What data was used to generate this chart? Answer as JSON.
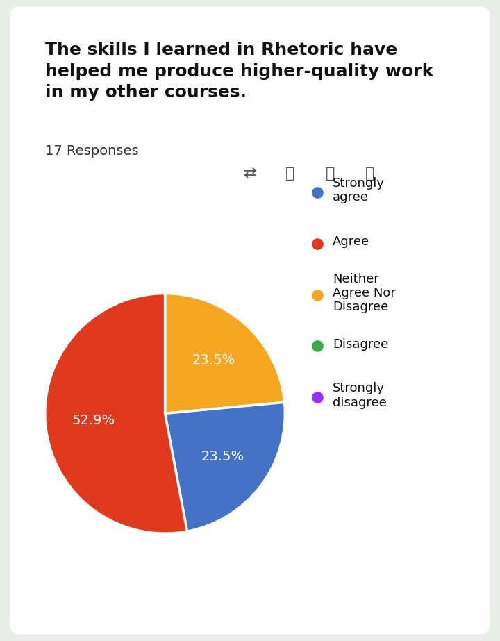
{
  "title": "The skills I learned in Rhetoric have\nhelped me produce higher-quality work\nin my other courses.",
  "responses_label": "17 Responses",
  "slices": [
    {
      "label": "Neither Agree Nor Disagree",
      "value": 23.5,
      "color": "#F5A623"
    },
    {
      "label": "Strongly agree",
      "value": 23.5,
      "color": "#4472C4"
    },
    {
      "label": "Agree",
      "value": 52.9,
      "color": "#E03A1E"
    }
  ],
  "legend_items": [
    {
      "label": "Strongly\nagree",
      "color": "#4472C4"
    },
    {
      "label": "Agree",
      "color": "#E03A1E"
    },
    {
      "label": "Neither\nAgree Nor\nDisagree",
      "color": "#F5A623"
    },
    {
      "label": "Disagree",
      "color": "#3DAA4A"
    },
    {
      "label": "Strongly\ndisagree",
      "color": "#9B30FF"
    }
  ],
  "pct_labels": [
    {
      "pct": "23.5%",
      "color": "white"
    },
    {
      "pct": "23.5%",
      "color": "white"
    },
    {
      "pct": "52.9%",
      "color": "white"
    }
  ],
  "background_color": "#E8EFE6",
  "card_color": "#FFFFFF",
  "title_fontsize": 18,
  "responses_fontsize": 14,
  "legend_fontsize": 13
}
